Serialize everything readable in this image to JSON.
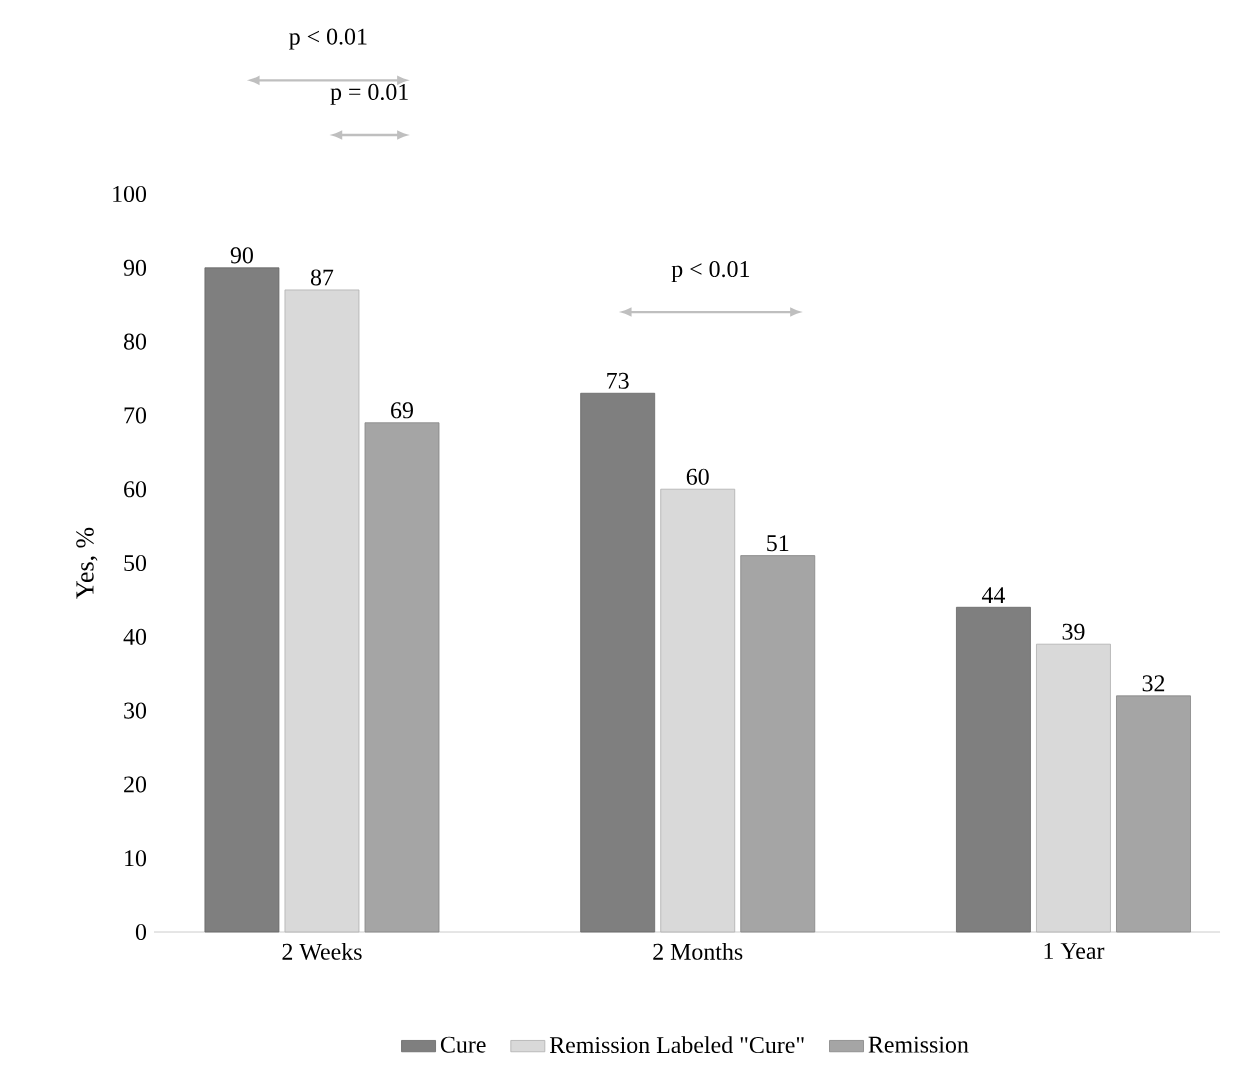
{
  "chart_data": {
    "type": "bar",
    "ylabel": "Yes, %",
    "categories": [
      "2 Weeks",
      "2 Months",
      "1 Year"
    ],
    "series": [
      {
        "name": "Cure",
        "color": "#7f7f7f",
        "values": [
          90,
          73,
          44
        ]
      },
      {
        "name": "Remission Labeled \"Cure\"",
        "color": "#d9d9d9",
        "values": [
          87,
          60,
          39
        ]
      },
      {
        "name": "Remission",
        "color": "#a5a5a5",
        "values": [
          69,
          51,
          32
        ]
      }
    ],
    "ylim": [
      0,
      100
    ],
    "yticks": [
      0,
      10,
      20,
      30,
      40,
      50,
      60,
      70,
      80,
      90,
      100
    ],
    "data_labels": true,
    "legend": "bottom",
    "grid": false,
    "annotations": [
      "p < 0.01",
      "p = 0.01",
      "p < 0.01"
    ]
  }
}
